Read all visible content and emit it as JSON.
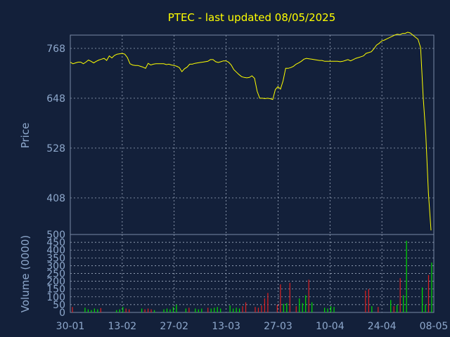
{
  "chart_data": [
    {
      "type": "line",
      "title": "PTEC - last updated 08/05/2025",
      "ylabel": "Price",
      "xlabel": "",
      "x_tick_labels": [
        "30-01",
        "13-02",
        "27-02",
        "13-03",
        "27-03",
        "10-04",
        "24-04",
        "08-05"
      ],
      "ylim": [
        320,
        800
      ],
      "y_ticks": [
        408,
        528,
        648,
        768
      ],
      "grid": true,
      "series": [
        {
          "values": [
            735,
            731,
            733,
            735,
            735,
            731,
            735,
            740,
            737,
            733,
            737,
            740,
            742,
            744,
            739,
            750,
            745,
            751,
            754,
            755,
            756,
            754,
            746,
            731,
            728,
            727,
            727,
            725,
            723,
            720,
            732,
            728,
            730,
            731,
            731,
            731,
            731,
            729,
            730,
            728,
            727,
            725,
            722,
            712,
            719,
            723,
            730,
            730,
            732,
            733,
            734,
            735,
            736,
            737,
            741,
            741,
            736,
            734,
            736,
            738,
            738,
            735,
            728,
            717,
            711,
            705,
            700,
            698,
            697,
            698,
            702,
            696,
            665,
            648,
            648,
            647,
            648,
            647,
            645,
            669,
            676,
            670,
            690,
            720,
            720,
            722,
            725,
            730,
            733,
            737,
            742,
            744,
            743,
            742,
            741,
            740,
            739,
            739,
            737,
            737,
            737,
            737,
            737,
            737,
            736,
            737,
            739,
            741,
            738,
            741,
            744,
            746,
            748,
            750,
            756,
            758,
            760,
            767,
            776,
            780,
            786,
            788,
            791,
            794,
            797,
            800,
            802,
            801,
            804,
            804,
            807,
            805,
            800,
            795,
            790,
            770,
            650,
            560,
            420,
            330
          ]
        }
      ]
    },
    {
      "type": "bar",
      "ylabel": "Volume (0000)",
      "ylim": [
        0,
        500
      ],
      "y_ticks": [
        0,
        50,
        100,
        150,
        200,
        250,
        300,
        350,
        400,
        450,
        500
      ],
      "x_tick_labels": [
        "30-01",
        "13-02",
        "27-02",
        "13-03",
        "27-03",
        "10-04",
        "24-04",
        "08-05"
      ],
      "up_color": "#00dd00",
      "down_color": "#e02020",
      "bars": [
        {
          "v": 35,
          "up": false
        },
        {
          "v": 0,
          "up": true
        },
        {
          "v": 0,
          "up": true
        },
        {
          "v": 0,
          "up": true
        },
        {
          "v": 30,
          "up": true
        },
        {
          "v": 20,
          "up": true
        },
        {
          "v": 15,
          "up": true
        },
        {
          "v": 25,
          "up": true
        },
        {
          "v": 20,
          "up": true
        },
        {
          "v": 28,
          "up": false
        },
        {
          "v": 0,
          "up": true
        },
        {
          "v": 0,
          "up": true
        },
        {
          "v": 0,
          "up": true
        },
        {
          "v": 0,
          "up": true
        },
        {
          "v": 15,
          "up": true
        },
        {
          "v": 20,
          "up": true
        },
        {
          "v": 35,
          "up": true
        },
        {
          "v": 25,
          "up": false
        },
        {
          "v": 20,
          "up": false
        },
        {
          "v": 0,
          "up": true
        },
        {
          "v": 0,
          "up": true
        },
        {
          "v": 0,
          "up": true
        },
        {
          "v": 25,
          "up": true
        },
        {
          "v": 20,
          "up": false
        },
        {
          "v": 25,
          "up": false
        },
        {
          "v": 20,
          "up": false
        },
        {
          "v": 15,
          "up": true
        },
        {
          "v": 0,
          "up": true
        },
        {
          "v": 0,
          "up": true
        },
        {
          "v": 20,
          "up": true
        },
        {
          "v": 25,
          "up": true
        },
        {
          "v": 20,
          "up": true
        },
        {
          "v": 35,
          "up": true
        },
        {
          "v": 50,
          "up": true
        },
        {
          "v": 0,
          "up": true
        },
        {
          "v": 0,
          "up": true
        },
        {
          "v": 25,
          "up": true
        },
        {
          "v": 30,
          "up": false
        },
        {
          "v": 0,
          "up": true
        },
        {
          "v": 25,
          "up": true
        },
        {
          "v": 20,
          "up": true
        },
        {
          "v": 25,
          "up": true
        },
        {
          "v": 0,
          "up": true
        },
        {
          "v": 30,
          "up": false
        },
        {
          "v": 25,
          "up": true
        },
        {
          "v": 30,
          "up": true
        },
        {
          "v": 35,
          "up": true
        },
        {
          "v": 25,
          "up": true
        },
        {
          "v": 0,
          "up": true
        },
        {
          "v": 0,
          "up": true
        },
        {
          "v": 45,
          "up": true
        },
        {
          "v": 25,
          "up": true
        },
        {
          "v": 30,
          "up": true
        },
        {
          "v": 25,
          "up": true
        },
        {
          "v": 40,
          "up": false
        },
        {
          "v": 65,
          "up": false
        },
        {
          "v": 0,
          "up": true
        },
        {
          "v": 0,
          "up": true
        },
        {
          "v": 35,
          "up": false
        },
        {
          "v": 30,
          "up": false
        },
        {
          "v": 45,
          "up": false
        },
        {
          "v": 90,
          "up": false
        },
        {
          "v": 125,
          "up": false
        },
        {
          "v": 0,
          "up": true
        },
        {
          "v": 0,
          "up": true
        },
        {
          "v": 50,
          "up": false
        },
        {
          "v": 180,
          "up": false
        },
        {
          "v": 55,
          "up": true
        },
        {
          "v": 60,
          "up": true
        },
        {
          "v": 190,
          "up": false
        },
        {
          "v": 0,
          "up": true
        },
        {
          "v": 40,
          "up": false
        },
        {
          "v": 90,
          "up": true
        },
        {
          "v": 60,
          "up": true
        },
        {
          "v": 110,
          "up": true
        },
        {
          "v": 210,
          "up": false
        },
        {
          "v": 65,
          "up": true
        },
        {
          "v": 0,
          "up": true
        },
        {
          "v": 0,
          "up": true
        },
        {
          "v": 0,
          "up": true
        },
        {
          "v": 30,
          "up": true
        },
        {
          "v": 25,
          "up": true
        },
        {
          "v": 40,
          "up": true
        },
        {
          "v": 35,
          "up": true
        },
        {
          "v": 0,
          "up": true
        },
        {
          "v": 0,
          "up": true
        },
        {
          "v": 0,
          "up": true
        },
        {
          "v": 0,
          "up": true
        },
        {
          "v": 0,
          "up": true
        },
        {
          "v": 0,
          "up": true
        },
        {
          "v": 0,
          "up": true
        },
        {
          "v": 0,
          "up": true
        },
        {
          "v": 0,
          "up": true
        },
        {
          "v": 140,
          "up": false
        },
        {
          "v": 150,
          "up": false
        },
        {
          "v": 40,
          "up": true
        },
        {
          "v": 0,
          "up": true
        },
        {
          "v": 35,
          "up": false
        },
        {
          "v": 0,
          "up": true
        },
        {
          "v": 0,
          "up": true
        },
        {
          "v": 0,
          "up": true
        },
        {
          "v": 80,
          "up": true
        },
        {
          "v": 40,
          "up": false
        },
        {
          "v": 50,
          "up": true
        },
        {
          "v": 220,
          "up": false
        },
        {
          "v": 110,
          "up": true
        },
        {
          "v": 460,
          "up": true
        },
        {
          "v": 0,
          "up": true
        },
        {
          "v": 0,
          "up": true
        },
        {
          "v": 0,
          "up": true
        },
        {
          "v": 0,
          "up": true
        },
        {
          "v": 160,
          "up": true
        },
        {
          "v": 50,
          "up": true
        },
        {
          "v": 240,
          "up": false
        },
        {
          "v": 320,
          "up": true
        }
      ]
    }
  ]
}
